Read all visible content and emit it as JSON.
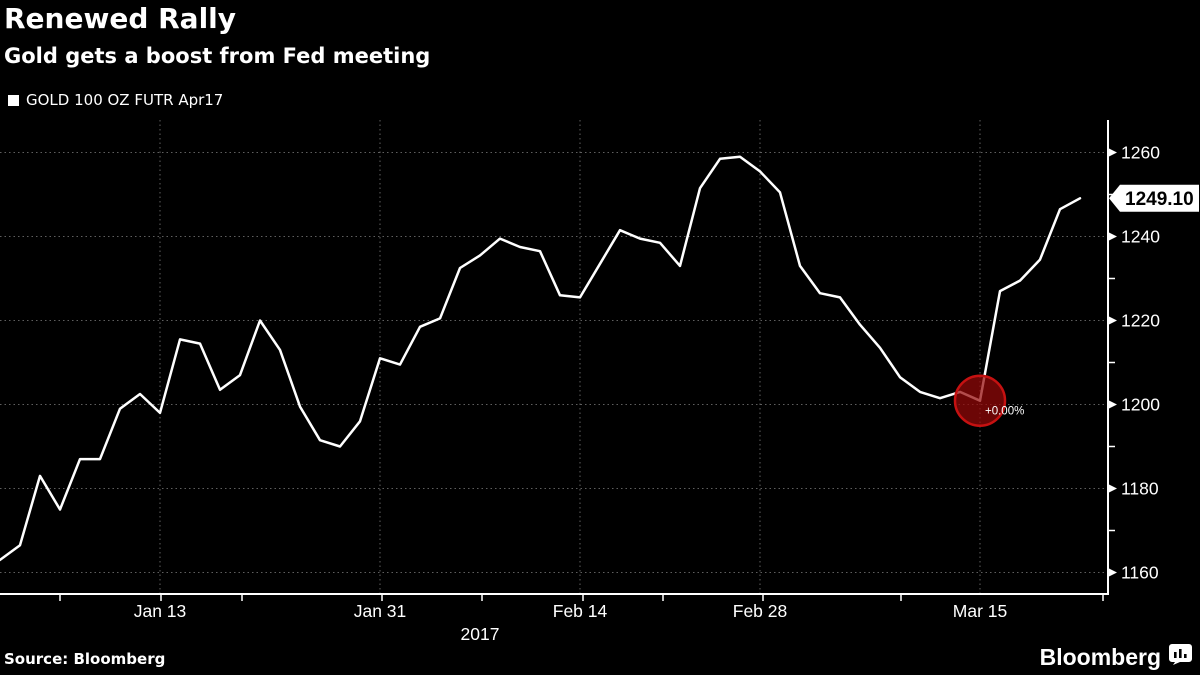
{
  "header": {
    "title": "Renewed Rally",
    "subtitle": "Gold gets a boost from Fed meeting"
  },
  "legend": {
    "label": "GOLD 100 OZ FUTR Apr17",
    "marker_color": "#ffffff"
  },
  "footer": {
    "source": "Source: Bloomberg",
    "brand": "Bloomberg"
  },
  "chart_data": {
    "type": "line",
    "title": "Renewed Rally",
    "subtitle": "Gold gets a boost from Fed meeting",
    "series": [
      {
        "name": "GOLD 100 OZ FUTR Apr17",
        "color": "#ffffff",
        "x": [
          "Jan 3",
          "Jan 4",
          "Jan 5",
          "Jan 6",
          "Jan 9",
          "Jan 10",
          "Jan 11",
          "Jan 12",
          "Jan 13",
          "Jan 17",
          "Jan 18",
          "Jan 19",
          "Jan 20",
          "Jan 23",
          "Jan 24",
          "Jan 25",
          "Jan 26",
          "Jan 27",
          "Jan 30",
          "Jan 31",
          "Feb 1",
          "Feb 2",
          "Feb 3",
          "Feb 6",
          "Feb 7",
          "Feb 8",
          "Feb 9",
          "Feb 10",
          "Feb 13",
          "Feb 14",
          "Feb 15",
          "Feb 16",
          "Feb 17",
          "Feb 21",
          "Feb 22",
          "Feb 23",
          "Feb 24",
          "Feb 27",
          "Feb 28",
          "Mar 1",
          "Mar 2",
          "Mar 3",
          "Mar 6",
          "Mar 7",
          "Mar 8",
          "Mar 9",
          "Mar 10",
          "Mar 13",
          "Mar 14",
          "Mar 15",
          "Mar 16",
          "Mar 17",
          "Mar 20",
          "Mar 21",
          "Mar 22"
        ],
        "values": [
          1163,
          1166.5,
          1183,
          1175,
          1187,
          1187,
          1199,
          1202.5,
          1198,
          1215.5,
          1214.5,
          1203.5,
          1207,
          1220,
          1213,
          1199.5,
          1191.5,
          1190,
          1196,
          1211,
          1209.5,
          1218.5,
          1220.5,
          1232.5,
          1235.5,
          1239.5,
          1237.5,
          1236.5,
          1226,
          1225.5,
          1233.5,
          1241.5,
          1239.5,
          1238.5,
          1233,
          1251.5,
          1258.5,
          1259,
          1255.5,
          1250.5,
          1233,
          1226.5,
          1225.5,
          1219,
          1213.5,
          1206.5,
          1203,
          1201.5,
          1203,
          1200.9,
          1227,
          1229.5,
          1234.5,
          1246.5,
          1249.1
        ]
      }
    ],
    "ylabel": "",
    "xlabel": "",
    "ylim": [
      1153,
      1268
    ],
    "yticks_major": [
      1160,
      1180,
      1200,
      1220,
      1240,
      1260
    ],
    "yticks_minor": [
      1170,
      1190,
      1210,
      1230,
      1250
    ],
    "x_tick_labels": [
      {
        "label": "Jan 13",
        "index": 8
      },
      {
        "label": "Jan 31",
        "index": 19
      },
      {
        "label": "Feb 14",
        "index": 29
      },
      {
        "label": "Feb 28",
        "index": 38
      },
      {
        "label": "Mar 15",
        "index": 49
      }
    ],
    "year_label": "2017",
    "grid": true,
    "grid_color": "#5f5f5f",
    "axis_color": "#ffffff",
    "last_price_label": "1249.10",
    "last_price_value": 1249.1,
    "annotation": {
      "label": "+0.00%",
      "x": "Mar 15",
      "value": 1200.9,
      "fill_color": "#960808",
      "stroke_color": "#c51111"
    }
  }
}
